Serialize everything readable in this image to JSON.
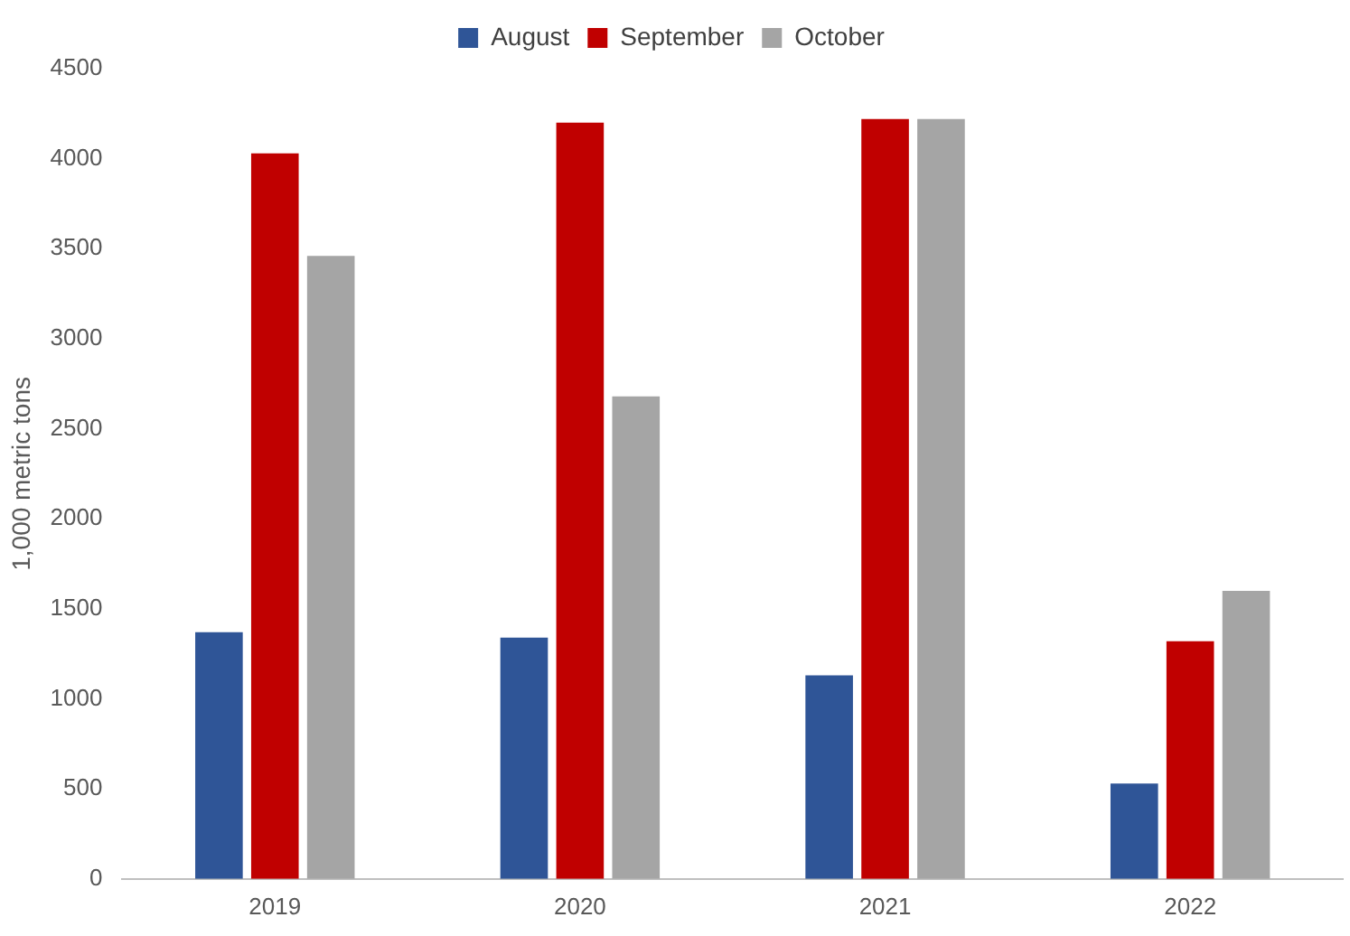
{
  "chart_data": {
    "type": "bar",
    "ylabel": "1,000 metric tons",
    "categories": [
      "2019",
      "2020",
      "2021",
      "2022"
    ],
    "series": [
      {
        "name": "August",
        "color": "#2f5597",
        "values": [
          1370,
          1340,
          1130,
          530
        ]
      },
      {
        "name": "September",
        "color": "#c00000",
        "values": [
          4030,
          4200,
          4220,
          1320
        ]
      },
      {
        "name": "October",
        "color": "#a5a5a5",
        "values": [
          3460,
          2680,
          4220,
          1600
        ]
      }
    ],
    "ylim": [
      0,
      4500
    ],
    "yticks": [
      0,
      500,
      1000,
      1500,
      2000,
      2500,
      3000,
      3500,
      4000,
      4500
    ],
    "grid": false,
    "legend": "top"
  }
}
